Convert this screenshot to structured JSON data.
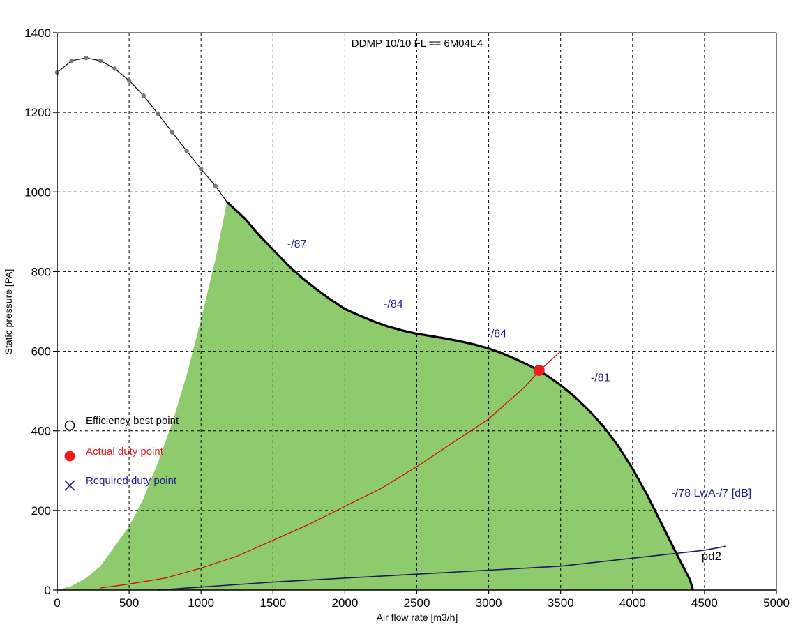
{
  "chart_data": {
    "type": "line",
    "title": "DDMP 10/10 FL == 6M04E4",
    "xlabel": "Air flow rate [m3/h]",
    "ylabel": "Static pressure [PA]",
    "xlim": [
      0,
      5000
    ],
    "ylim": [
      0,
      1400
    ],
    "xticks": [
      0,
      500,
      1000,
      1500,
      2000,
      2500,
      3000,
      3500,
      4000,
      4500,
      5000
    ],
    "yticks": [
      0,
      200,
      400,
      600,
      800,
      1000,
      1200,
      1400
    ],
    "grid": true,
    "grid_style": "dashed",
    "legend_position": "left-middle",
    "colors": {
      "area": "#8ecb6c",
      "fan_curve": "#000000",
      "marker": "#777777",
      "system_curve": "#d40000",
      "duty_point": "#ee1c1c",
      "system_line": "#1a1a5e",
      "label": "#1f1f8a"
    },
    "fan_curve_full": {
      "name": "",
      "points": [
        [
          0,
          1300
        ],
        [
          100,
          1330
        ],
        [
          200,
          1337
        ],
        [
          300,
          1330
        ],
        [
          400,
          1310
        ],
        [
          500,
          1280
        ],
        [
          600,
          1242
        ],
        [
          700,
          1197
        ],
        [
          800,
          1150
        ],
        [
          900,
          1103
        ],
        [
          1000,
          1058
        ],
        [
          1100,
          1015
        ],
        [
          1180,
          975
        ],
        [
          1300,
          935
        ],
        [
          1400,
          893
        ],
        [
          1500,
          855
        ],
        [
          1600,
          818
        ],
        [
          1700,
          785
        ],
        [
          1800,
          756
        ],
        [
          1900,
          730
        ],
        [
          2000,
          706
        ],
        [
          2100,
          690
        ],
        [
          2200,
          675
        ],
        [
          2300,
          662
        ],
        [
          2400,
          652
        ],
        [
          2500,
          644
        ],
        [
          2600,
          638
        ],
        [
          2700,
          632
        ],
        [
          2800,
          625
        ],
        [
          2900,
          617
        ],
        [
          3000,
          607
        ],
        [
          3100,
          594
        ],
        [
          3200,
          578
        ],
        [
          3300,
          561
        ],
        [
          3400,
          540
        ],
        [
          3500,
          515
        ],
        [
          3600,
          485
        ],
        [
          3700,
          450
        ],
        [
          3800,
          410
        ],
        [
          3900,
          362
        ],
        [
          4000,
          305
        ],
        [
          4100,
          240
        ],
        [
          4200,
          168
        ],
        [
          4300,
          95
        ],
        [
          4400,
          25
        ],
        [
          4420,
          0
        ]
      ]
    },
    "fan_curve_markers": [
      [
        0,
        1300
      ],
      [
        100,
        1330
      ],
      [
        200,
        1337
      ],
      [
        300,
        1330
      ],
      [
        400,
        1310
      ],
      [
        500,
        1280
      ],
      [
        600,
        1242
      ],
      [
        700,
        1197
      ],
      [
        800,
        1150
      ],
      [
        900,
        1103
      ],
      [
        1000,
        1058
      ],
      [
        1100,
        1015
      ]
    ],
    "operating_area": {
      "upper_boundary": [
        [
          1180,
          975
        ],
        [
          1300,
          935
        ],
        [
          1400,
          893
        ],
        [
          1500,
          855
        ],
        [
          1600,
          818
        ],
        [
          1700,
          785
        ],
        [
          1800,
          756
        ],
        [
          1900,
          730
        ],
        [
          2000,
          706
        ],
        [
          2100,
          690
        ],
        [
          2200,
          675
        ],
        [
          2300,
          662
        ],
        [
          2400,
          652
        ],
        [
          2500,
          644
        ],
        [
          2600,
          638
        ],
        [
          2700,
          632
        ],
        [
          2800,
          625
        ],
        [
          2900,
          617
        ],
        [
          3000,
          607
        ],
        [
          3100,
          594
        ],
        [
          3200,
          578
        ],
        [
          3300,
          561
        ],
        [
          3400,
          540
        ],
        [
          3500,
          515
        ],
        [
          3600,
          485
        ],
        [
          3700,
          450
        ],
        [
          3800,
          410
        ],
        [
          3900,
          362
        ],
        [
          4000,
          305
        ],
        [
          4100,
          240
        ],
        [
          4200,
          168
        ],
        [
          4300,
          95
        ],
        [
          4400,
          25
        ],
        [
          4420,
          0
        ]
      ],
      "left_boundary": [
        [
          0,
          0
        ],
        [
          100,
          10
        ],
        [
          200,
          30
        ],
        [
          300,
          60
        ],
        [
          400,
          110
        ],
        [
          500,
          160
        ],
        [
          600,
          230
        ],
        [
          700,
          320
        ],
        [
          800,
          420
        ],
        [
          900,
          540
        ],
        [
          1000,
          680
        ],
        [
          1100,
          830
        ],
        [
          1180,
          975
        ]
      ]
    },
    "system_curve": {
      "points": [
        [
          300,
          5
        ],
        [
          500,
          15
        ],
        [
          750,
          30
        ],
        [
          1000,
          55
        ],
        [
          1250,
          85
        ],
        [
          1500,
          125
        ],
        [
          1750,
          165
        ],
        [
          2000,
          210
        ],
        [
          2250,
          255
        ],
        [
          2500,
          310
        ],
        [
          2750,
          370
        ],
        [
          3000,
          430
        ],
        [
          3250,
          510
        ],
        [
          3350,
          550
        ],
        [
          3500,
          600
        ]
      ]
    },
    "system_line": {
      "points": [
        [
          700,
          0
        ],
        [
          1500,
          20
        ],
        [
          2500,
          40
        ],
        [
          3500,
          60
        ],
        [
          4500,
          100
        ],
        [
          4650,
          110
        ]
      ],
      "label": "pd2",
      "label_at": [
        4480,
        75
      ]
    },
    "duty_point": [
      3350,
      552
    ],
    "sound_labels": [
      {
        "text": "-/87",
        "at": [
          1600,
          860
        ]
      },
      {
        "text": "-/84",
        "at": [
          2270,
          710
        ]
      },
      {
        "text": "-/84",
        "at": [
          2990,
          635
        ]
      },
      {
        "text": "-/81",
        "at": [
          3710,
          525
        ]
      },
      {
        "text": "-/78  LwA-/7 [dB]",
        "at": [
          4270,
          235
        ]
      }
    ],
    "legend": [
      {
        "symbol": "circle-open",
        "label": "Efficiency best point",
        "color": "#000000"
      },
      {
        "symbol": "circle-filled",
        "label": "Actual duty point",
        "color": "#ee1c1c"
      },
      {
        "symbol": "cross",
        "label": "Required duty point",
        "color": "#1f1f8a"
      }
    ]
  }
}
